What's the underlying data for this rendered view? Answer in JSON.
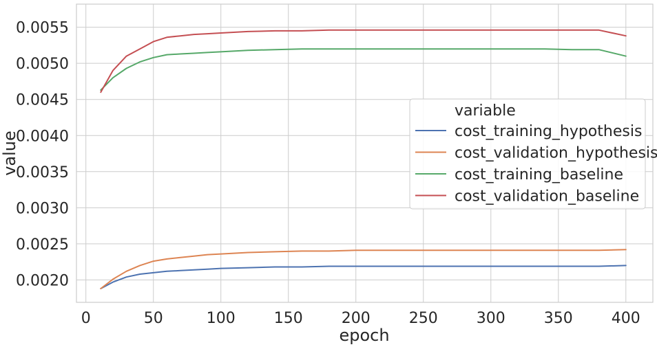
{
  "chart_data": {
    "type": "line",
    "xlabel": "epoch",
    "ylabel": "value",
    "xlim": [
      -7,
      420
    ],
    "ylim": [
      0.00169,
      0.00582
    ],
    "xticks": [
      0,
      50,
      100,
      150,
      200,
      250,
      300,
      350,
      400
    ],
    "xtick_labels": [
      "0",
      "50",
      "100",
      "150",
      "200",
      "250",
      "300",
      "350",
      "400"
    ],
    "yticks": [
      0.002,
      0.0025,
      0.003,
      0.0035,
      0.004,
      0.0045,
      0.005,
      0.0055
    ],
    "ytick_labels": [
      "0.0020",
      "0.0025",
      "0.0030",
      "0.0035",
      "0.0040",
      "0.0045",
      "0.0050",
      "0.0055"
    ],
    "grid": true,
    "legend_title": "variable",
    "legend_position": "center-right",
    "x": [
      11,
      20,
      30,
      40,
      50,
      60,
      70,
      80,
      90,
      100,
      120,
      140,
      160,
      180,
      200,
      220,
      240,
      260,
      280,
      300,
      320,
      340,
      360,
      380,
      400
    ],
    "series": [
      {
        "name": "cost_training_hypothesis",
        "color": "#4c72b0",
        "values": [
          0.00188,
          0.00197,
          0.00204,
          0.00208,
          0.0021,
          0.00212,
          0.00213,
          0.00214,
          0.00215,
          0.00216,
          0.00217,
          0.00218,
          0.00218,
          0.00219,
          0.00219,
          0.00219,
          0.00219,
          0.00219,
          0.00219,
          0.00219,
          0.00219,
          0.00219,
          0.00219,
          0.00219,
          0.0022
        ]
      },
      {
        "name": "cost_validation_hypothesis",
        "color": "#dd8452",
        "values": [
          0.00188,
          0.00201,
          0.00212,
          0.0022,
          0.00226,
          0.00229,
          0.00231,
          0.00233,
          0.00235,
          0.00236,
          0.00238,
          0.00239,
          0.0024,
          0.0024,
          0.00241,
          0.00241,
          0.00241,
          0.00241,
          0.00241,
          0.00241,
          0.00241,
          0.00241,
          0.00241,
          0.00241,
          0.00242
        ]
      },
      {
        "name": "cost_training_baseline",
        "color": "#55a868",
        "values": [
          0.00463,
          0.0048,
          0.00493,
          0.00502,
          0.00508,
          0.00512,
          0.00513,
          0.00514,
          0.00515,
          0.00516,
          0.00518,
          0.00519,
          0.0052,
          0.0052,
          0.0052,
          0.0052,
          0.0052,
          0.0052,
          0.0052,
          0.0052,
          0.0052,
          0.0052,
          0.00519,
          0.00519,
          0.0051
        ]
      },
      {
        "name": "cost_validation_baseline",
        "color": "#c44e52",
        "values": [
          0.0046,
          0.0049,
          0.0051,
          0.0052,
          0.0053,
          0.00536,
          0.00538,
          0.0054,
          0.00541,
          0.00542,
          0.00544,
          0.00545,
          0.00545,
          0.00546,
          0.00546,
          0.00546,
          0.00546,
          0.00546,
          0.00546,
          0.00546,
          0.00546,
          0.00546,
          0.00546,
          0.00546,
          0.00538
        ]
      }
    ]
  }
}
